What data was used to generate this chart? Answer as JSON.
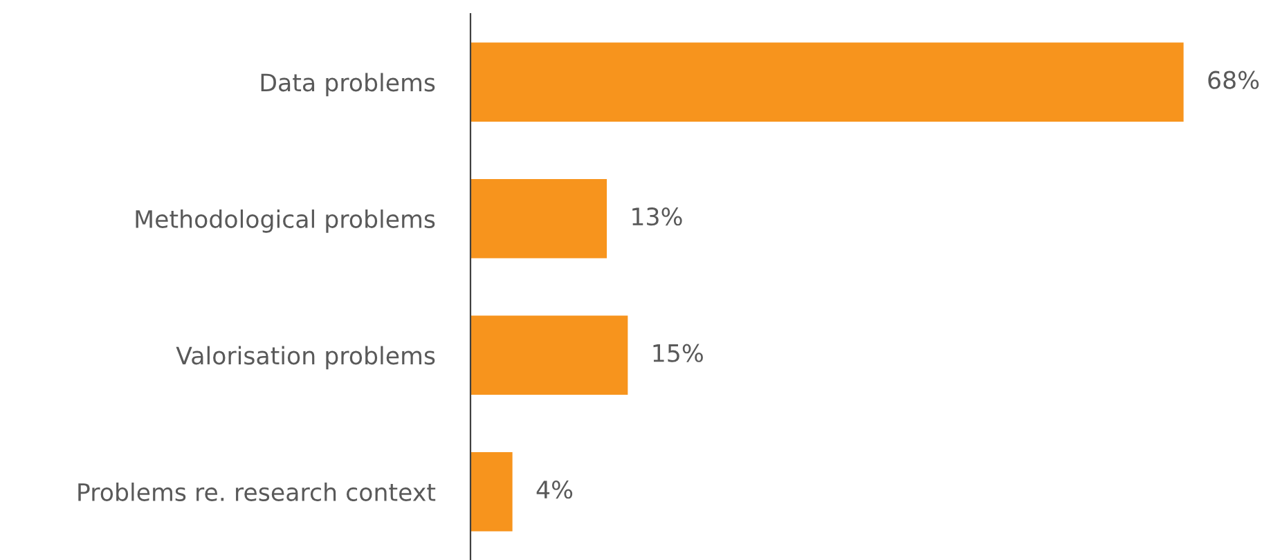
{
  "chart_data": {
    "type": "bar",
    "orientation": "horizontal",
    "categories": [
      "Data problems",
      "Methodological problems",
      "Valorisation problems",
      "Problems re. research context"
    ],
    "values": [
      68,
      13,
      15,
      4
    ],
    "value_labels": [
      "68%",
      "13%",
      "15%",
      "4%"
    ],
    "color": "#f7941d",
    "tick_labels": "y",
    "grid": false,
    "legend": false
  }
}
